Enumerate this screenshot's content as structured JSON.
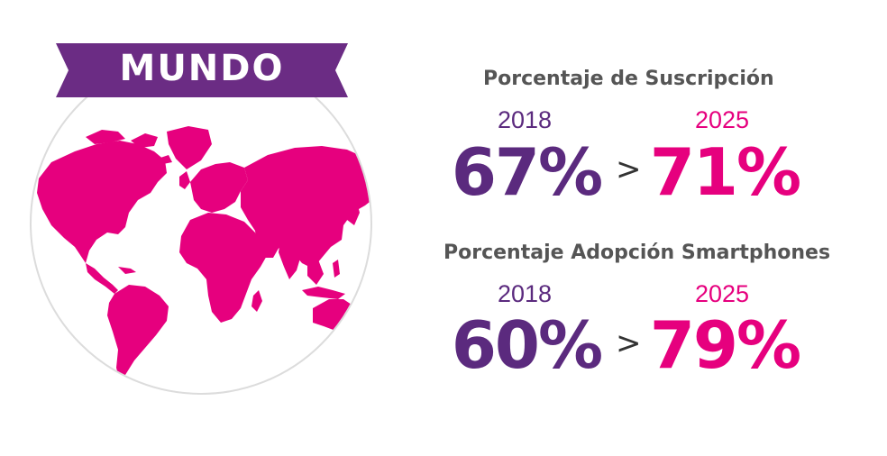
{
  "colors": {
    "purple": "#5b2a7e",
    "pink": "#e6007e",
    "gray": "#555555",
    "banner": "#6b2c84"
  },
  "banner": {
    "label": "MUNDO"
  },
  "globe": {
    "icon": "world-map-icon"
  },
  "stats": [
    {
      "heading": "Porcentaje de Suscripción",
      "from": {
        "year": "2018",
        "value": "67%"
      },
      "arrow": ">",
      "to": {
        "year": "2025",
        "value": "71%"
      }
    },
    {
      "heading": "Porcentaje Adopción Smartphones",
      "from": {
        "year": "2018",
        "value": "60%"
      },
      "arrow": ">",
      "to": {
        "year": "2025",
        "value": "79%"
      }
    }
  ]
}
